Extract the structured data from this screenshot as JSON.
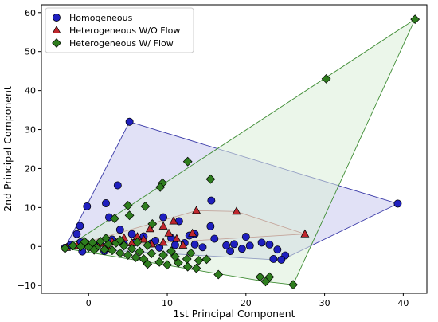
{
  "chart_data": {
    "type": "scatter",
    "title": "",
    "xlabel": "1st Principal Component",
    "ylabel": "2nd Principal Component",
    "xlim": [
      -6,
      43
    ],
    "ylim": [
      -12,
      62
    ],
    "xticks": [
      0,
      10,
      20,
      30,
      40
    ],
    "yticks": [
      -10,
      0,
      10,
      20,
      30,
      40,
      50,
      60
    ],
    "grid": false,
    "legend_position": "top-left",
    "series": [
      {
        "name": "Homogeneous",
        "marker": "circle",
        "color": "#1f1fbf",
        "hull_fill": "#c8c8ee",
        "hull_stroke": "#3a3aa8",
        "hull": [
          [
            5.2,
            32
          ],
          [
            39.3,
            11
          ],
          [
            24.5,
            -3.5
          ],
          [
            -3,
            -0.3
          ],
          [
            -1.5,
            5.5
          ]
        ],
        "points": [
          [
            5.2,
            32
          ],
          [
            39.3,
            11
          ],
          [
            -0.2,
            10.3
          ],
          [
            3.7,
            15.7
          ],
          [
            2.2,
            11.1
          ],
          [
            2.6,
            7.5
          ],
          [
            -1.1,
            5.3
          ],
          [
            -1.5,
            3.2
          ],
          [
            4,
            4.3
          ],
          [
            15.6,
            11.8
          ],
          [
            9.5,
            7.5
          ],
          [
            11.5,
            6.5
          ],
          [
            15.5,
            5.2
          ],
          [
            13.5,
            3.2
          ],
          [
            16,
            2
          ],
          [
            20,
            2.5
          ],
          [
            22,
            1
          ],
          [
            23,
            0.5
          ],
          [
            24,
            -0.8
          ],
          [
            25,
            -2.3
          ],
          [
            24.5,
            -3.4
          ],
          [
            23.5,
            -3.2
          ],
          [
            18,
            -1.2
          ],
          [
            17.5,
            0.3
          ],
          [
            13.5,
            0.5
          ],
          [
            12.2,
            0.9
          ],
          [
            11,
            0.4
          ],
          [
            8,
            0.8
          ],
          [
            6,
            1.2
          ],
          [
            4.5,
            0.6
          ],
          [
            3,
            1.8
          ],
          [
            1.5,
            0.9
          ],
          [
            0.2,
            0.3
          ],
          [
            -1,
            1.1
          ],
          [
            -2.3,
            0.4
          ],
          [
            -3,
            -0.3
          ],
          [
            10.5,
            2.2
          ],
          [
            7,
            2.6
          ],
          [
            5.5,
            3.2
          ],
          [
            18.5,
            0.6
          ],
          [
            19.5,
            -0.6
          ],
          [
            9,
            -0.3
          ],
          [
            14.5,
            -0.2
          ],
          [
            20.5,
            0.2
          ],
          [
            2,
            -1.2
          ],
          [
            -0.8,
            -1.3
          ],
          [
            8.5,
            1.5
          ],
          [
            12.8,
            2.8
          ]
        ]
      },
      {
        "name": "Heterogeneous W/O Flow",
        "marker": "triangle",
        "color": "#c0272d",
        "hull_fill": "#ecd0d4",
        "hull_stroke": "#a84b4e",
        "hull": [
          [
            27.5,
            3.2
          ],
          [
            18.8,
            9
          ],
          [
            13.7,
            9.2
          ],
          [
            -3,
            -0.5
          ]
        ],
        "points": [
          [
            27.5,
            3.2
          ],
          [
            18.8,
            9
          ],
          [
            13.7,
            9.2
          ],
          [
            10.8,
            6.5
          ],
          [
            9.5,
            5.2
          ],
          [
            7.8,
            4.5
          ],
          [
            13.2,
            3.4
          ],
          [
            11.2,
            2
          ],
          [
            6.2,
            2.5
          ],
          [
            4.5,
            2.2
          ],
          [
            3,
            1.2
          ],
          [
            1.5,
            0.8
          ],
          [
            0,
            0.5
          ],
          [
            -1.5,
            0.2
          ],
          [
            -2.8,
            -0.3
          ],
          [
            8,
            0.6
          ],
          [
            9.5,
            1
          ],
          [
            12,
            0.3
          ],
          [
            5.5,
            0.9
          ],
          [
            2.5,
            -0.6
          ],
          [
            7,
            1.8
          ],
          [
            10.2,
            3.4
          ]
        ]
      },
      {
        "name": "Heterogeneous W/ Flow",
        "marker": "diamond",
        "color": "#2e7d1e",
        "hull_fill": "#daefd8",
        "hull_stroke": "#3e8c33",
        "hull": [
          [
            41.5,
            58.3
          ],
          [
            26,
            -9.8
          ],
          [
            22.5,
            -9
          ],
          [
            -3,
            -0.5
          ]
        ],
        "points": [
          [
            41.5,
            58.3
          ],
          [
            30.2,
            43
          ],
          [
            12.6,
            21.8
          ],
          [
            15.5,
            17.3
          ],
          [
            9.4,
            16.3
          ],
          [
            9.1,
            15.2
          ],
          [
            7.2,
            10.3
          ],
          [
            5,
            10.5
          ],
          [
            5.2,
            8
          ],
          [
            3.3,
            7.2
          ],
          [
            8.1,
            5.8
          ],
          [
            26,
            -9.8
          ],
          [
            22.5,
            -9
          ],
          [
            23,
            -7.8
          ],
          [
            21.8,
            -7.8
          ],
          [
            16.5,
            -7.2
          ],
          [
            13.7,
            -5.6
          ],
          [
            12.6,
            -5.2
          ],
          [
            11.4,
            -4.2
          ],
          [
            10,
            -4.7
          ],
          [
            9,
            -4
          ],
          [
            7,
            -3.2
          ],
          [
            7.5,
            -4.5
          ],
          [
            6,
            -2.8
          ],
          [
            5,
            -2.2
          ],
          [
            4,
            -1.7
          ],
          [
            3,
            -1
          ],
          [
            2,
            -0.8
          ],
          [
            1,
            -0.3
          ],
          [
            0,
            -0.2
          ],
          [
            -1,
            0
          ],
          [
            -2,
            0.2
          ],
          [
            -3,
            -0.5
          ],
          [
            0.5,
            1
          ],
          [
            1.5,
            1.3
          ],
          [
            2.5,
            0.6
          ],
          [
            3.5,
            0.9
          ],
          [
            4.5,
            0.2
          ],
          [
            5.5,
            -0.6
          ],
          [
            6.5,
            -1.3
          ],
          [
            8,
            -1.8
          ],
          [
            9.5,
            -2.2
          ],
          [
            11,
            -2.6
          ],
          [
            12.5,
            -3.2
          ],
          [
            14,
            -3.6
          ],
          [
            4,
            1.6
          ],
          [
            6.2,
            1.1
          ],
          [
            7.5,
            0.3
          ],
          [
            2.2,
            2.1
          ],
          [
            0.7,
            -0.9
          ],
          [
            -0.5,
            1.2
          ],
          [
            10.5,
            -1.2
          ],
          [
            13,
            -1.7
          ],
          [
            15,
            -3.3
          ]
        ]
      }
    ]
  }
}
